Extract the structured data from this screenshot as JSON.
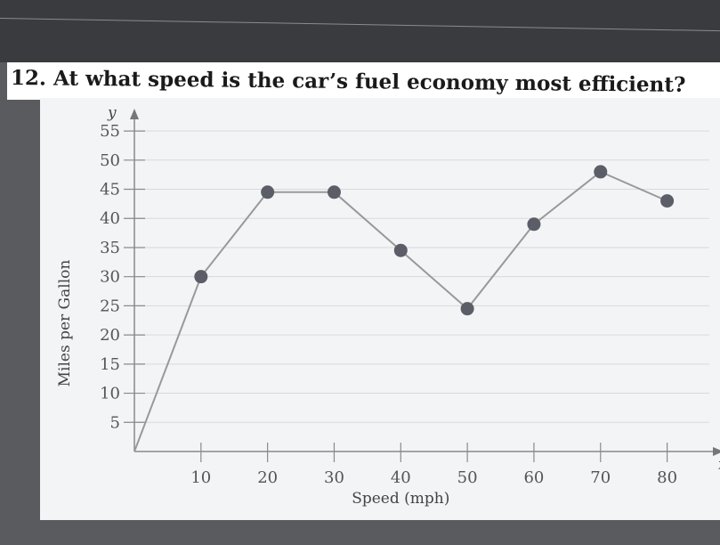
{
  "question": {
    "text": "12. At what speed is the car’s fuel economy most efficient?"
  },
  "chart_data": {
    "type": "line",
    "title": "",
    "xlabel": "Speed (mph)",
    "ylabel": "Miles per Gallon",
    "x_axis_letter": "x",
    "y_axis_letter": "y",
    "xlim": [
      0,
      85
    ],
    "ylim": [
      0,
      57
    ],
    "x_ticks": [
      10,
      20,
      30,
      40,
      50,
      60,
      70,
      80
    ],
    "y_ticks": [
      5,
      10,
      15,
      20,
      25,
      30,
      35,
      40,
      45,
      50,
      55
    ],
    "grid": true,
    "series": [
      {
        "x": [
          0,
          10,
          20,
          30,
          40,
          50,
          60,
          70,
          80
        ],
        "y": [
          0,
          30,
          44.5,
          44.5,
          34.5,
          24.5,
          39,
          48,
          43
        ],
        "marker": [
          false,
          true,
          true,
          true,
          true,
          true,
          true,
          true,
          true
        ],
        "color": "#999999",
        "marker_color": "#5b5e66"
      }
    ]
  }
}
